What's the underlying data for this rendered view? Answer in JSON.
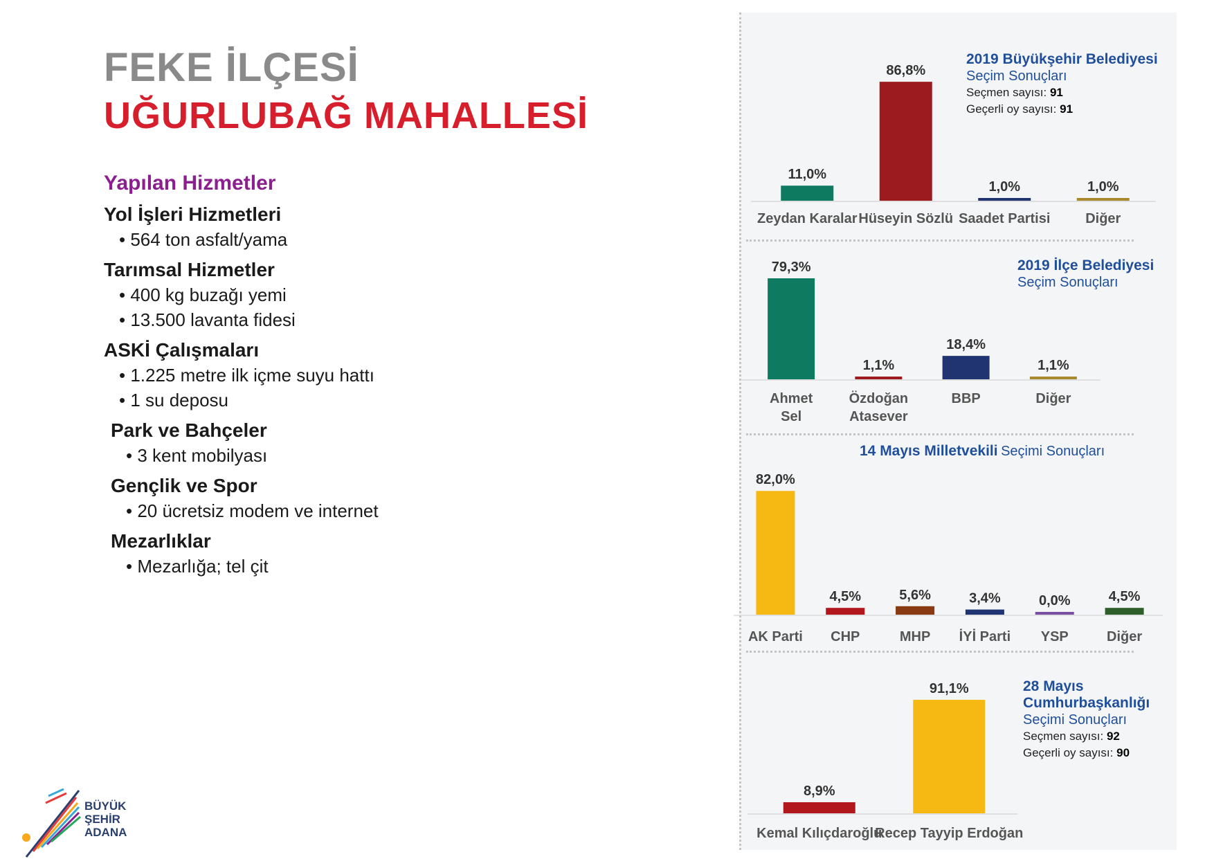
{
  "title": {
    "line1": "FEKE İLÇESİ",
    "line2": "UĞURLUBAĞ MAHALLESİ"
  },
  "services": {
    "heading": "Yapılan Hizmetler",
    "sections": [
      {
        "title": "Yol İşleri Hizmetleri",
        "items": [
          "564 ton asfalt/yama"
        ]
      },
      {
        "title": "Tarımsal Hizmetler",
        "items": [
          "400 kg buzağı yemi",
          "13.500 lavanta fidesi"
        ]
      },
      {
        "title": "ASKİ Çalışmaları",
        "items": [
          "1.225 metre ilk içme suyu hattı",
          "1 su deposu"
        ]
      },
      {
        "title": "Park ve Bahçeler",
        "items": [
          "3 kent mobilyası"
        ]
      },
      {
        "title": "Gençlik ve Spor",
        "items": [
          "20 ücretsiz modem ve internet"
        ]
      },
      {
        "title": "Mezarlıklar",
        "items": [
          "Mezarlığa; tel çit"
        ]
      }
    ]
  },
  "info": {
    "c1": {
      "title": "2019 Büyükşehir Belediyesi",
      "subtitle": "Seçim Sonuçları",
      "voters_label": "Seçmen sayısı:",
      "voters": "91",
      "valid_label": "Geçerli oy sayısı:",
      "valid": "91"
    },
    "c2": {
      "title": "2019 İlçe Belediyesi",
      "subtitle": "Seçim Sonuçları"
    },
    "c3": {
      "title": "14 Mayıs Milletvekili",
      "subtitle": "Seçimi Sonuçları"
    },
    "c4": {
      "title1": "28 Mayıs",
      "title2": "Cumhurbaşkanlığı",
      "subtitle": "Seçimi Sonuçları",
      "voters_label": "Seçmen sayısı:",
      "voters": "92",
      "valid_label": "Geçerli oy sayısı:",
      "valid": "90"
    }
  },
  "logo": {
    "line1": "BÜYÜK",
    "line2": "ŞEHİR",
    "line3": "ADANA"
  },
  "chart_data": [
    {
      "type": "bar",
      "title": "2019 Büyükşehir Belediyesi Seçim Sonuçları",
      "categories": [
        "Zeydan Karalar",
        "Hüseyin Sözlü",
        "Saadet Partisi",
        "Diğer"
      ],
      "values": [
        11.0,
        86.8,
        1.0,
        1.0
      ],
      "labels": [
        "11,0%",
        "86,8%",
        "1,0%",
        "1,0%"
      ],
      "colors": [
        "#0e7a5f",
        "#9b1b1f",
        "#1f3470",
        "#a8892e"
      ]
    },
    {
      "type": "bar",
      "title": "2019 İlçe Belediyesi Seçim Sonuçları",
      "categories": [
        "Ahmet Sel",
        "Özdoğan Atasever",
        "BBP",
        "Diğer"
      ],
      "values": [
        79.3,
        1.1,
        18.4,
        1.1
      ],
      "labels": [
        "79,3%",
        "1,1%",
        "18,4%",
        "1,1%"
      ],
      "colors": [
        "#0e7a5f",
        "#9b1b1f",
        "#1f3470",
        "#a8892e"
      ]
    },
    {
      "type": "bar",
      "title": "14 Mayıs Milletvekili Seçimi Sonuçları",
      "categories": [
        "AK Parti",
        "CHP",
        "MHP",
        "İYİ Parti",
        "YSP",
        "Diğer"
      ],
      "values": [
        82.0,
        4.5,
        5.6,
        3.4,
        0.0,
        4.5
      ],
      "labels": [
        "82,0%",
        "4,5%",
        "5,6%",
        "3,4%",
        "0,0%",
        "4,5%"
      ],
      "colors": [
        "#f6b914",
        "#b3171e",
        "#8a3a12",
        "#1f3470",
        "#7a4ea0",
        "#2e5e2a"
      ]
    },
    {
      "type": "bar",
      "title": "28 Mayıs Cumhurbaşkanlığı Seçimi Sonuçları",
      "categories": [
        "Kemal Kılıçdaroğlu",
        "Recep Tayyip Erdoğan"
      ],
      "values": [
        8.9,
        91.1
      ],
      "labels": [
        "8,9%",
        "91,1%"
      ],
      "colors": [
        "#b3171e",
        "#f6b914"
      ]
    }
  ]
}
